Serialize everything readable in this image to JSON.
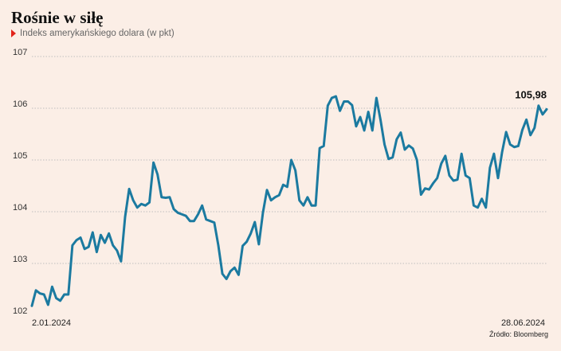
{
  "header": {
    "title": "Rośnie w siłę",
    "subtitle": "Indeks amerykańskiego dolara (w pkt)"
  },
  "source": "Źródło: Bloomberg",
  "colors": {
    "background": "#fbeee6",
    "line": "#1b7aa0",
    "accent": "#e2231a",
    "grid": "#bfbfbf"
  },
  "chart_data": {
    "type": "line",
    "title": "Rośnie w siłę",
    "subtitle": "Indeks amerykańskiego dolara (w pkt)",
    "xlabel": "",
    "ylabel": "",
    "ylim": [
      102,
      107
    ],
    "yticks": [
      102,
      103,
      104,
      105,
      106,
      107
    ],
    "ytick_labels": [
      "102",
      "103",
      "104",
      "105",
      "106",
      "107"
    ],
    "x_tick_labels": [
      "2.01.2024",
      "28.06.2024"
    ],
    "last_value_label": "105,98",
    "grid": "horizontal dotted",
    "series": [
      {
        "values": [
          102.18,
          102.48,
          102.42,
          102.4,
          102.2,
          102.55,
          102.33,
          102.28,
          102.4,
          102.4,
          103.35,
          103.45,
          103.5,
          103.28,
          103.32,
          103.6,
          103.22,
          103.55,
          103.4,
          103.58,
          103.35,
          103.25,
          103.04,
          103.9,
          104.44,
          104.22,
          104.08,
          104.15,
          104.12,
          104.18,
          104.95,
          104.72,
          104.28,
          104.27,
          104.28,
          104.05,
          103.98,
          103.95,
          103.92,
          103.82,
          103.82,
          103.95,
          104.12,
          103.85,
          103.82,
          103.79,
          103.35,
          102.8,
          102.7,
          102.85,
          102.92,
          102.78,
          103.34,
          103.42,
          103.58,
          103.8,
          103.37,
          103.98,
          104.42,
          104.22,
          104.28,
          104.32,
          104.52,
          104.48,
          105.0,
          104.8,
          104.22,
          104.12,
          104.28,
          104.12,
          104.12,
          105.23,
          105.27,
          106.05,
          106.2,
          106.23,
          105.95,
          106.13,
          106.13,
          106.06,
          105.65,
          105.83,
          105.57,
          105.93,
          105.57,
          106.2,
          105.78,
          105.3,
          105.02,
          105.05,
          105.4,
          105.53,
          105.2,
          105.28,
          105.22,
          105.0,
          104.33,
          104.45,
          104.43,
          104.55,
          104.65,
          104.93,
          105.08,
          104.7,
          104.6,
          104.62,
          105.12,
          104.7,
          104.65,
          104.12,
          104.08,
          104.25,
          104.08,
          104.85,
          105.12,
          104.65,
          105.15,
          105.54,
          105.3,
          105.25,
          105.27,
          105.58,
          105.78,
          105.48,
          105.62,
          106.05,
          105.88,
          105.98
        ]
      }
    ]
  }
}
